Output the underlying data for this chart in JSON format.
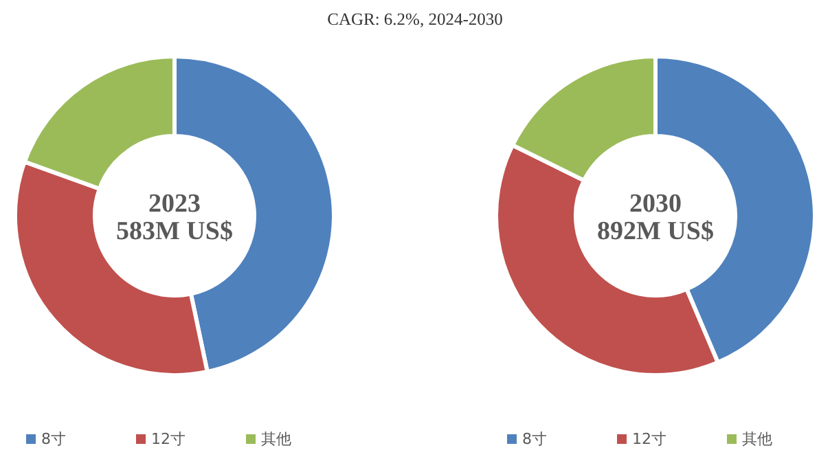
{
  "chart_data": [
    {
      "type": "donut",
      "title": "CAGR: 6.2%, 2024-2030",
      "categories": [
        "8寸",
        "12寸",
        "其他"
      ],
      "values": [
        46.7,
        33.8,
        19.5
      ],
      "colors": [
        "#4f81bd",
        "#c0504d",
        "#9bbb59"
      ],
      "annotations": [
        "2023",
        "583M US$"
      ],
      "legend": "bottom"
    },
    {
      "type": "donut",
      "categories": [
        "8寸",
        "12寸",
        "其他"
      ],
      "values": [
        43.6,
        38.7,
        17.7
      ],
      "colors": [
        "#4f81bd",
        "#c0504d",
        "#9bbb59"
      ],
      "annotations": [
        "2030",
        "892M US$"
      ],
      "legend": "bottom"
    }
  ]
}
